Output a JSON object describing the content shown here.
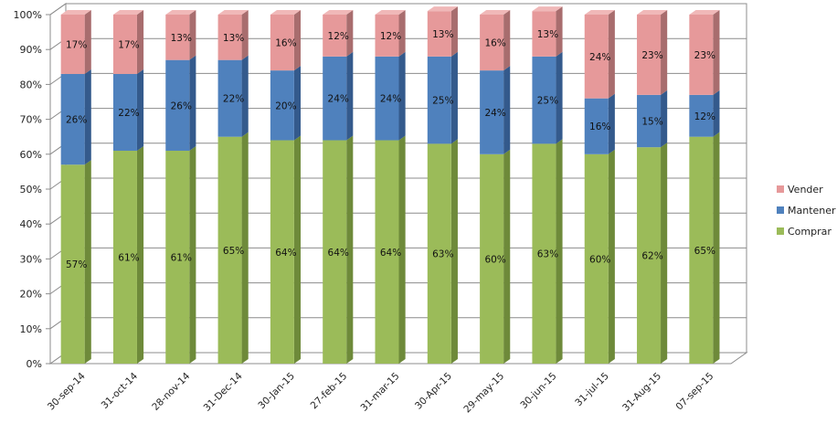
{
  "chart_data": {
    "type": "bar",
    "stacked": true,
    "three_d": true,
    "categories": [
      "30-sep-14",
      "31-oct-14",
      "28-nov-14",
      "31-Dec-14",
      "30-Jan-15",
      "27-feb-15",
      "31-mar-15",
      "30-Apr-15",
      "29-may-15",
      "30-jun-15",
      "31-jul-15",
      "31-Aug-15",
      "07-sep-15"
    ],
    "series": [
      {
        "name": "Comprar",
        "values": [
          57,
          61,
          61,
          65,
          64,
          64,
          64,
          63,
          60,
          63,
          60,
          62,
          65
        ],
        "labels": [
          "57%",
          "61%",
          "61%",
          "65%",
          "64%",
          "64%",
          "64%",
          "63%",
          "60%",
          "63%",
          "60%",
          "62%",
          "65%"
        ],
        "color": "#9bbb59",
        "side_color": "#6e8a3a",
        "top_color": "#b5cf7f"
      },
      {
        "name": "Mantener",
        "values": [
          26,
          22,
          26,
          22,
          20,
          24,
          24,
          25,
          24,
          25,
          16,
          15,
          12
        ],
        "labels": [
          "26%",
          "22%",
          "26%",
          "22%",
          "20%",
          "24%",
          "24%",
          "25%",
          "24%",
          "25%",
          "16%",
          "15%",
          "12%"
        ],
        "color": "#4f81bd",
        "side_color": "#345a8c",
        "top_color": "#7a9fd0"
      },
      {
        "name": "Vender",
        "values": [
          17,
          17,
          13,
          13,
          16,
          12,
          12,
          13,
          16,
          13,
          24,
          23,
          23
        ],
        "labels": [
          "17%",
          "17%",
          "13%",
          "13%",
          "16%",
          "12%",
          "12%",
          "13%",
          "16%",
          "13%",
          "24%",
          "23%",
          "23%"
        ],
        "color": "#e6999a",
        "side_color": "#a86d6e",
        "top_color": "#f0b8b8"
      }
    ],
    "stack_tops": [
      100,
      100,
      100,
      100,
      100,
      100,
      100,
      100,
      100,
      100,
      100,
      100,
      100
    ],
    "y_ticks": [
      0,
      10,
      20,
      30,
      40,
      50,
      60,
      70,
      80,
      90,
      100
    ],
    "y_tick_labels": [
      "0%",
      "10%",
      "20%",
      "30%",
      "40%",
      "50%",
      "60%",
      "70%",
      "80%",
      "90%",
      "100%"
    ],
    "ylim": [
      0,
      100
    ],
    "grid": true,
    "legend_position": "right",
    "legend_order": [
      "Vender",
      "Mantener",
      "Comprar"
    ],
    "title": "",
    "xlabel": "",
    "ylabel": ""
  }
}
